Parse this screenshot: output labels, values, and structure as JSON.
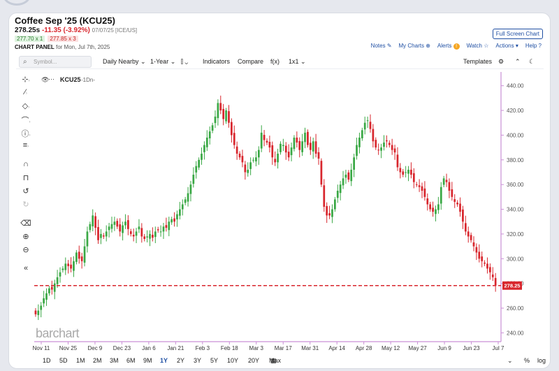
{
  "header": {
    "title": "Coffee Sep '25 (KCU25)",
    "last": "278.25s",
    "change": "-11.35 (-3.92%)",
    "meta": "07/07/25 [ICE/US]",
    "bid": "277.70 x 1",
    "ask": "277.85 x 3",
    "panel_label_bold": "CHART PANEL",
    "panel_label_rest": "for Mon, Jul 7th, 2025",
    "fullscreen": "Full Screen Chart",
    "links": {
      "notes": "Notes",
      "mycharts": "My Charts",
      "alerts": "Alerts",
      "alerts_badge": "!",
      "watch": "Watch",
      "actions": "Actions",
      "help": "Help"
    }
  },
  "toolbar": {
    "symbol_placeholder": "Symbol...",
    "daily": "Daily Nearby",
    "period": "1-Year",
    "indicators": "Indicators",
    "compare": "Compare",
    "fx": "f(x)",
    "layout": "1x1",
    "templates": "Templates"
  },
  "legend": {
    "symbol": "KCU25",
    "interval": "-1Dn-"
  },
  "watermark": "barchart",
  "ranges": [
    "1D",
    "5D",
    "1M",
    "2M",
    "3M",
    "6M",
    "9M",
    "1Y",
    "2Y",
    "3Y",
    "5Y",
    "10Y",
    "20Y",
    "Max"
  ],
  "active_range": "1Y",
  "bottom_right": {
    "pct": "%",
    "log": "log"
  },
  "colors": {
    "up": "#3aa845",
    "down": "#d8262d",
    "axis": "#c98fd6",
    "last_price_line": "#d8262d"
  },
  "chart_data": {
    "type": "candlestick",
    "symbol": "KCU25",
    "ylim": [
      234,
      450
    ],
    "yticks": [
      240,
      260,
      280,
      300,
      320,
      340,
      360,
      380,
      400,
      420,
      440
    ],
    "x_tick_labels": [
      "Nov 11",
      "Nov 25",
      "Dec 9",
      "Dec 23",
      "Jan 6",
      "Jan 21",
      "Feb 3",
      "Feb 18",
      "Mar 3",
      "Mar 17",
      "Mar 31",
      "Apr 14",
      "Apr 28",
      "May 12",
      "May 27",
      "Jun 9",
      "Jun 23",
      "Jul 7"
    ],
    "last_price": 278.25,
    "last_price_label": "278.25",
    "closes": [
      255,
      258,
      262,
      268,
      272,
      276,
      275,
      280,
      285,
      289,
      292,
      296,
      294,
      292,
      298,
      305,
      300,
      298,
      310,
      322,
      328,
      335,
      325,
      315,
      320,
      318,
      322,
      326,
      328,
      330,
      326,
      322,
      327,
      330,
      324,
      320,
      318,
      322,
      326,
      318,
      316,
      318,
      320,
      317,
      322,
      323,
      322,
      326,
      325,
      330,
      332,
      330,
      336,
      340,
      344,
      348,
      353,
      360,
      368,
      375,
      380,
      385,
      392,
      398,
      403,
      408,
      415,
      426,
      420,
      413,
      420,
      410,
      400,
      392,
      385,
      382,
      378,
      370,
      372,
      378,
      380,
      382,
      388,
      402,
      396,
      394,
      390,
      382,
      378,
      385,
      393,
      392,
      386,
      382,
      390,
      398,
      394,
      388,
      395,
      402,
      392,
      388,
      395,
      385,
      381,
      360,
      342,
      335,
      335,
      340,
      348,
      355,
      360,
      365,
      368,
      364,
      372,
      382,
      392,
      398,
      404,
      410,
      412,
      405,
      395,
      390,
      388,
      390,
      394,
      395,
      392,
      388,
      386,
      374,
      370,
      368,
      370,
      372,
      368,
      362,
      360,
      358,
      355,
      350,
      344,
      340,
      338,
      340,
      344,
      358,
      365,
      362,
      355,
      350,
      346,
      344,
      338,
      330,
      322,
      318,
      315,
      310,
      305,
      300,
      298,
      296,
      292,
      289,
      285,
      278.25
    ]
  }
}
